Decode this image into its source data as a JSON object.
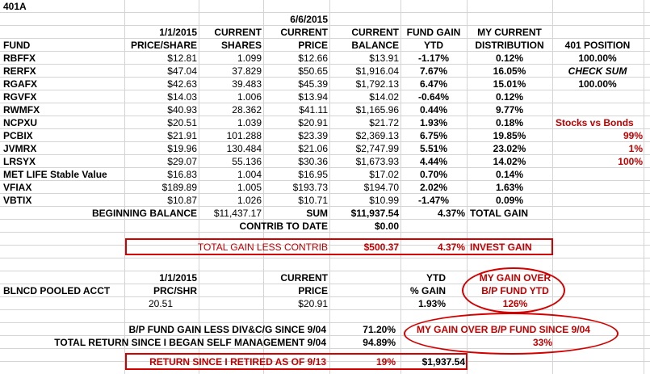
{
  "sheet_title": "401A",
  "header": {
    "date1": "1/1/2015",
    "date2": "6/6/2015",
    "current_a": "CURRENT",
    "current_b": "CURRENT",
    "current_c": "CURRENT",
    "fund_gain": "FUND GAIN",
    "my_current": "MY CURRENT",
    "fund": "FUND",
    "price_share": "PRICE/SHARE",
    "shares": "SHARES",
    "price": "PRICE",
    "balance": "BALANCE",
    "ytd": "YTD",
    "distribution": "DISTRIBUTION",
    "position_401": "401 POSITION"
  },
  "funds": [
    {
      "fund": "RBFFX",
      "p1": "$12.81",
      "shares": "1.099",
      "p2": "$12.66",
      "bal": "$13.91",
      "ytd": "-1.17%",
      "dist": "0.12%"
    },
    {
      "fund": "RERFX",
      "p1": "$47.04",
      "shares": "37.829",
      "p2": "$50.65",
      "bal": "$1,916.04",
      "ytd": "7.67%",
      "dist": "16.05%"
    },
    {
      "fund": "RGAFX",
      "p1": "$42.63",
      "shares": "39.483",
      "p2": "$45.39",
      "bal": "$1,792.13",
      "ytd": "6.47%",
      "dist": "15.01%"
    },
    {
      "fund": "RGVFX",
      "p1": "$14.03",
      "shares": "1.006",
      "p2": "$13.94",
      "bal": "$14.02",
      "ytd": "-0.64%",
      "dist": "0.12%"
    },
    {
      "fund": "RWMFX",
      "p1": "$40.93",
      "shares": "28.362",
      "p2": "$41.11",
      "bal": "$1,165.96",
      "ytd": "0.44%",
      "dist": "9.77%"
    },
    {
      "fund": "NCPXU",
      "p1": "$20.51",
      "shares": "1.039",
      "p2": "$20.91",
      "bal": "$21.72",
      "ytd": "1.93%",
      "dist": "0.18%"
    },
    {
      "fund": "PCBIX",
      "p1": "$21.91",
      "shares": "101.288",
      "p2": "$23.39",
      "bal": "$2,369.13",
      "ytd": "6.75%",
      "dist": "19.85%"
    },
    {
      "fund": "JVMRX",
      "p1": "$19.96",
      "shares": "130.484",
      "p2": "$21.06",
      "bal": "$2,747.99",
      "ytd": "5.51%",
      "dist": "23.02%"
    },
    {
      "fund": "LRSYX",
      "p1": "$29.07",
      "shares": "55.136",
      "p2": "$30.36",
      "bal": "$1,673.93",
      "ytd": "4.44%",
      "dist": "14.02%"
    },
    {
      "fund": "MET LIFE Stable Value",
      "p1": "$16.83",
      "shares": "1.004",
      "p2": "$16.95",
      "bal": "$17.02",
      "ytd": "0.70%",
      "dist": "0.14%"
    },
    {
      "fund": "VFIAX",
      "p1": "$189.89",
      "shares": "1.005",
      "p2": "$193.73",
      "bal": "$194.70",
      "ytd": "2.02%",
      "dist": "1.63%"
    },
    {
      "fund": "VBTIX",
      "p1": "$10.87",
      "shares": "1.026",
      "p2": "$10.71",
      "bal": "$10.99",
      "ytd": "-1.47%",
      "dist": "0.09%"
    }
  ],
  "side": {
    "pos_value": "100.00%",
    "check_sum_label": "CHECK SUM",
    "check_sum_value": "100.00%",
    "stocks_vs_bonds": "Stocks vs Bonds",
    "svb1": "99%",
    "svb2": "1%",
    "svb3": "100%"
  },
  "summary": {
    "beginning_balance_label": "BEGINNING BALANCE",
    "beginning_balance": "$11,437.17",
    "sum_label": "SUM",
    "sum_value": "$11,937.54",
    "total_gain_pct": "4.37%",
    "total_gain_label": "TOTAL GAIN",
    "contrib_label": "CONTRIB TO DATE",
    "contrib_value": "$0.00",
    "tglc_label": "TOTAL GAIN LESS CONTRIB",
    "tglc_value": "$500.37",
    "invest_gain_pct": "4.37%",
    "invest_gain_label": "INVEST GAIN"
  },
  "pooled": {
    "date": "1/1/2015",
    "current": "CURRENT",
    "ytd": "YTD",
    "my_gain_over": "MY GAIN OVER",
    "name": "BLNCD POOLED ACCT",
    "prc_shr": "PRC/SHR",
    "price": "PRICE",
    "pct_gain": "% GAIN",
    "bp_fund_ytd": "B/P FUND YTD",
    "p1": "20.51",
    "p2": "$20.91",
    "ytd_value": "1.93%",
    "gain_value": "126%"
  },
  "bottom": {
    "bp_label": "B/P FUND GAIN LESS DIV&C/G SINCE 9/04",
    "bp_value": "71.20%",
    "total_return_label": "TOTAL RETURN SINCE I BEGAN SELF MANAGEMENT 9/04",
    "total_return_value": "94.89%",
    "my_gain_over_bp": "MY GAIN OVER  B/P FUND  SINCE 9/04",
    "my_gain_over_bp_value": "33%",
    "retired_label": "RETURN SINCE I RETIRED AS OF 9/13",
    "retired_pct": "19%",
    "retired_value": "$1,937.54"
  }
}
